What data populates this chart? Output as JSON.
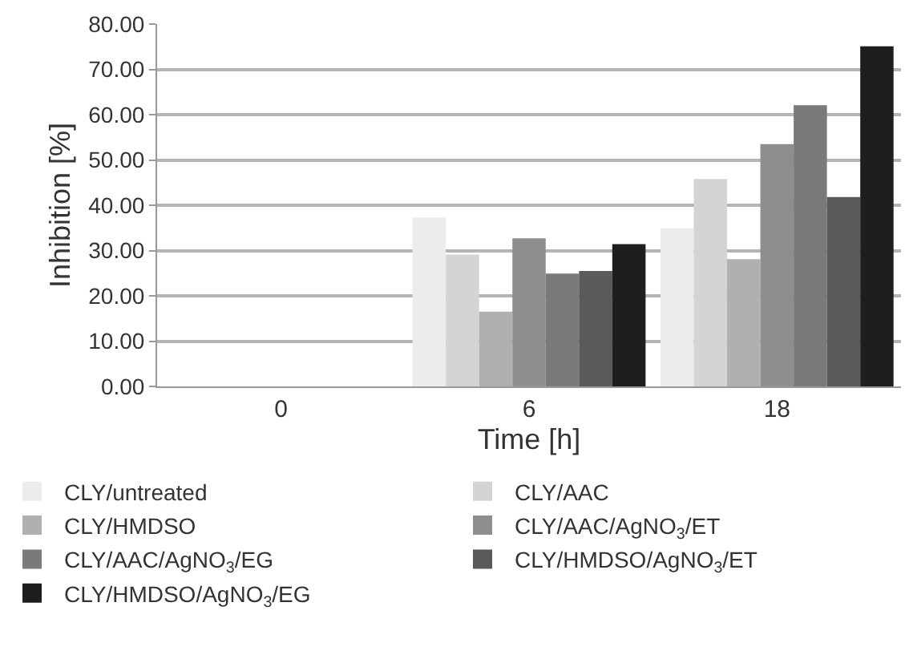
{
  "chart_data": {
    "type": "bar",
    "xlabel": "Time [h]",
    "ylabel": "Inhibition [%]",
    "categories": [
      "0",
      "6",
      "18"
    ],
    "series": [
      {
        "name": "CLY/untreated",
        "color": "#ececec",
        "values": [
          0,
          37.3,
          34.9
        ]
      },
      {
        "name": "CLY/AAC",
        "color": "#d4d4d4",
        "values": [
          0,
          29.1,
          45.8
        ]
      },
      {
        "name": "CLY/HMDSO",
        "color": "#b0b0b0",
        "values": [
          0,
          16.5,
          28.1
        ]
      },
      {
        "name": "CLY/AAC/AgNO$_{3}$/ET",
        "color": "#8e8e8e",
        "values": [
          0,
          32.7,
          53.5
        ]
      },
      {
        "name": "CLY/AAC/AgNO$_{3}$/EG",
        "color": "#7a7a7a",
        "values": [
          0,
          24.9,
          62.1
        ]
      },
      {
        "name": "CLY/HMDSO/AgNO$_{3}$/ET",
        "color": "#5a5a5a",
        "values": [
          0,
          25.5,
          41.8
        ]
      },
      {
        "name": "CLY/HMDSO/AgNO$_{3}$/EG",
        "color": "#1e1e1e",
        "values": [
          0,
          31.4,
          75.1
        ]
      }
    ],
    "ylim": [
      0,
      80
    ],
    "yticks": [
      {
        "value": 0,
        "label": "0.00"
      },
      {
        "value": 10,
        "label": "10.00"
      },
      {
        "value": 20,
        "label": "20.00"
      },
      {
        "value": 30,
        "label": "30.00"
      },
      {
        "value": 40,
        "label": "40.00"
      },
      {
        "value": 50,
        "label": "50.00"
      },
      {
        "value": 60,
        "label": "60.00"
      },
      {
        "value": 70,
        "label": "70.00"
      },
      {
        "value": 80,
        "label": "80.00"
      }
    ],
    "grid": "y",
    "legend": "bottom"
  }
}
